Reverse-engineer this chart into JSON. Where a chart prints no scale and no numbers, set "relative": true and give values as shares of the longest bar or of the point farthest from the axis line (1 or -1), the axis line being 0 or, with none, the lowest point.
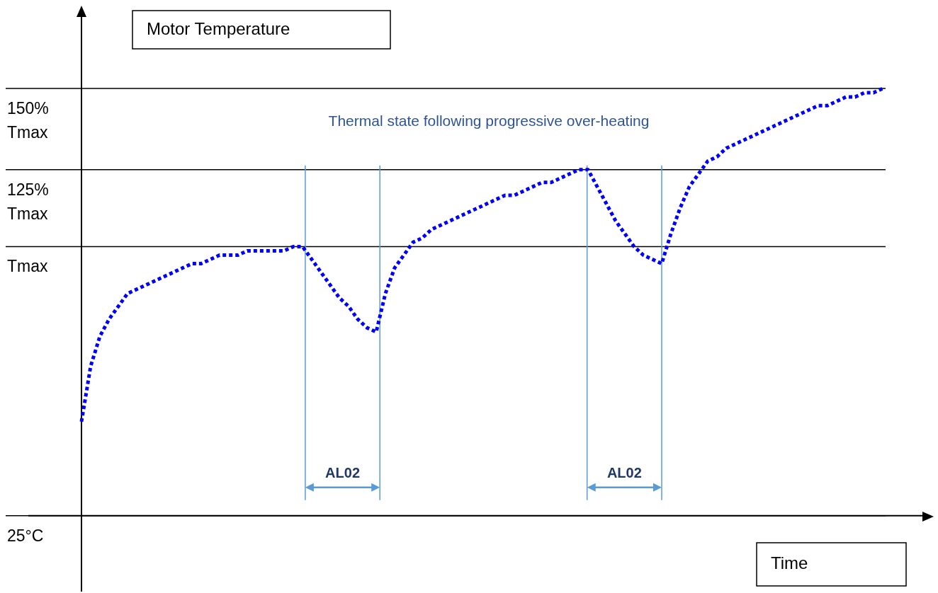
{
  "chart_data": {
    "type": "line",
    "title": "Motor Temperature",
    "xlabel": "Time",
    "relative": true,
    "categories": [
      null,
      null,
      null,
      null,
      null,
      null,
      null,
      null,
      null,
      null,
      null,
      null,
      null,
      null,
      null,
      null,
      null,
      null,
      null,
      null,
      null,
      null,
      null,
      null,
      null,
      null,
      null,
      null,
      null,
      null,
      null,
      null,
      null,
      null,
      null,
      null,
      null,
      null,
      null,
      null,
      null,
      null,
      null,
      null,
      null,
      null,
      null,
      null,
      null,
      null,
      null,
      null,
      null,
      null,
      null,
      null,
      null,
      null,
      null,
      null,
      null,
      null,
      null,
      null,
      null,
      null,
      null,
      null,
      null,
      null,
      null,
      null,
      null,
      null,
      null,
      null,
      null,
      null,
      null,
      null,
      null,
      null,
      null,
      null,
      null,
      null,
      null,
      null
    ],
    "series": [
      {
        "color": "#0000ff",
        "values": [
          0.22,
          0.35,
          0.42,
          0.46,
          0.49,
          0.52,
          0.53,
          0.54,
          0.55,
          0.56,
          0.57,
          0.58,
          0.59,
          0.59,
          0.6,
          0.61,
          0.61,
          0.61,
          0.62,
          0.62,
          0.62,
          0.62,
          0.62,
          0.63,
          0.63,
          0.6,
          0.57,
          0.54,
          0.51,
          0.49,
          0.46,
          0.44,
          0.43,
          0.52,
          0.58,
          0.61,
          0.64,
          0.65,
          0.67,
          0.68,
          0.69,
          0.7,
          0.71,
          0.72,
          0.73,
          0.74,
          0.75,
          0.75,
          0.76,
          0.77,
          0.78,
          0.78,
          0.79,
          0.8,
          0.81,
          0.81,
          0.77,
          0.73,
          0.69,
          0.66,
          0.63,
          0.61,
          0.6,
          0.59,
          0.66,
          0.72,
          0.77,
          0.8,
          0.83,
          0.84,
          0.86,
          0.87,
          0.88,
          0.89,
          0.9,
          0.91,
          0.92,
          0.93,
          0.94,
          0.95,
          0.96,
          0.96,
          0.97,
          0.98,
          0.98,
          0.99,
          0.99,
          1
        ]
      }
    ],
    "ref_lines": [
      {
        "axis": "y",
        "value": 0,
        "label": "25°C",
        "color": "#000000"
      },
      {
        "axis": "y",
        "value": 0.63,
        "label": "Tmax",
        "color": "#000000"
      },
      {
        "axis": "y",
        "value": 0.81,
        "label": "125% Tmax",
        "color": "#000000"
      },
      {
        "axis": "y",
        "value": 1,
        "label": "150% Tmax",
        "color": "#000000"
      }
    ],
    "annotations": [
      "Thermal state following progressive over-heating",
      "AL02",
      "AL02"
    ],
    "grid": false,
    "legend": false,
    "marker": "none",
    "line_style": "dotted"
  }
}
